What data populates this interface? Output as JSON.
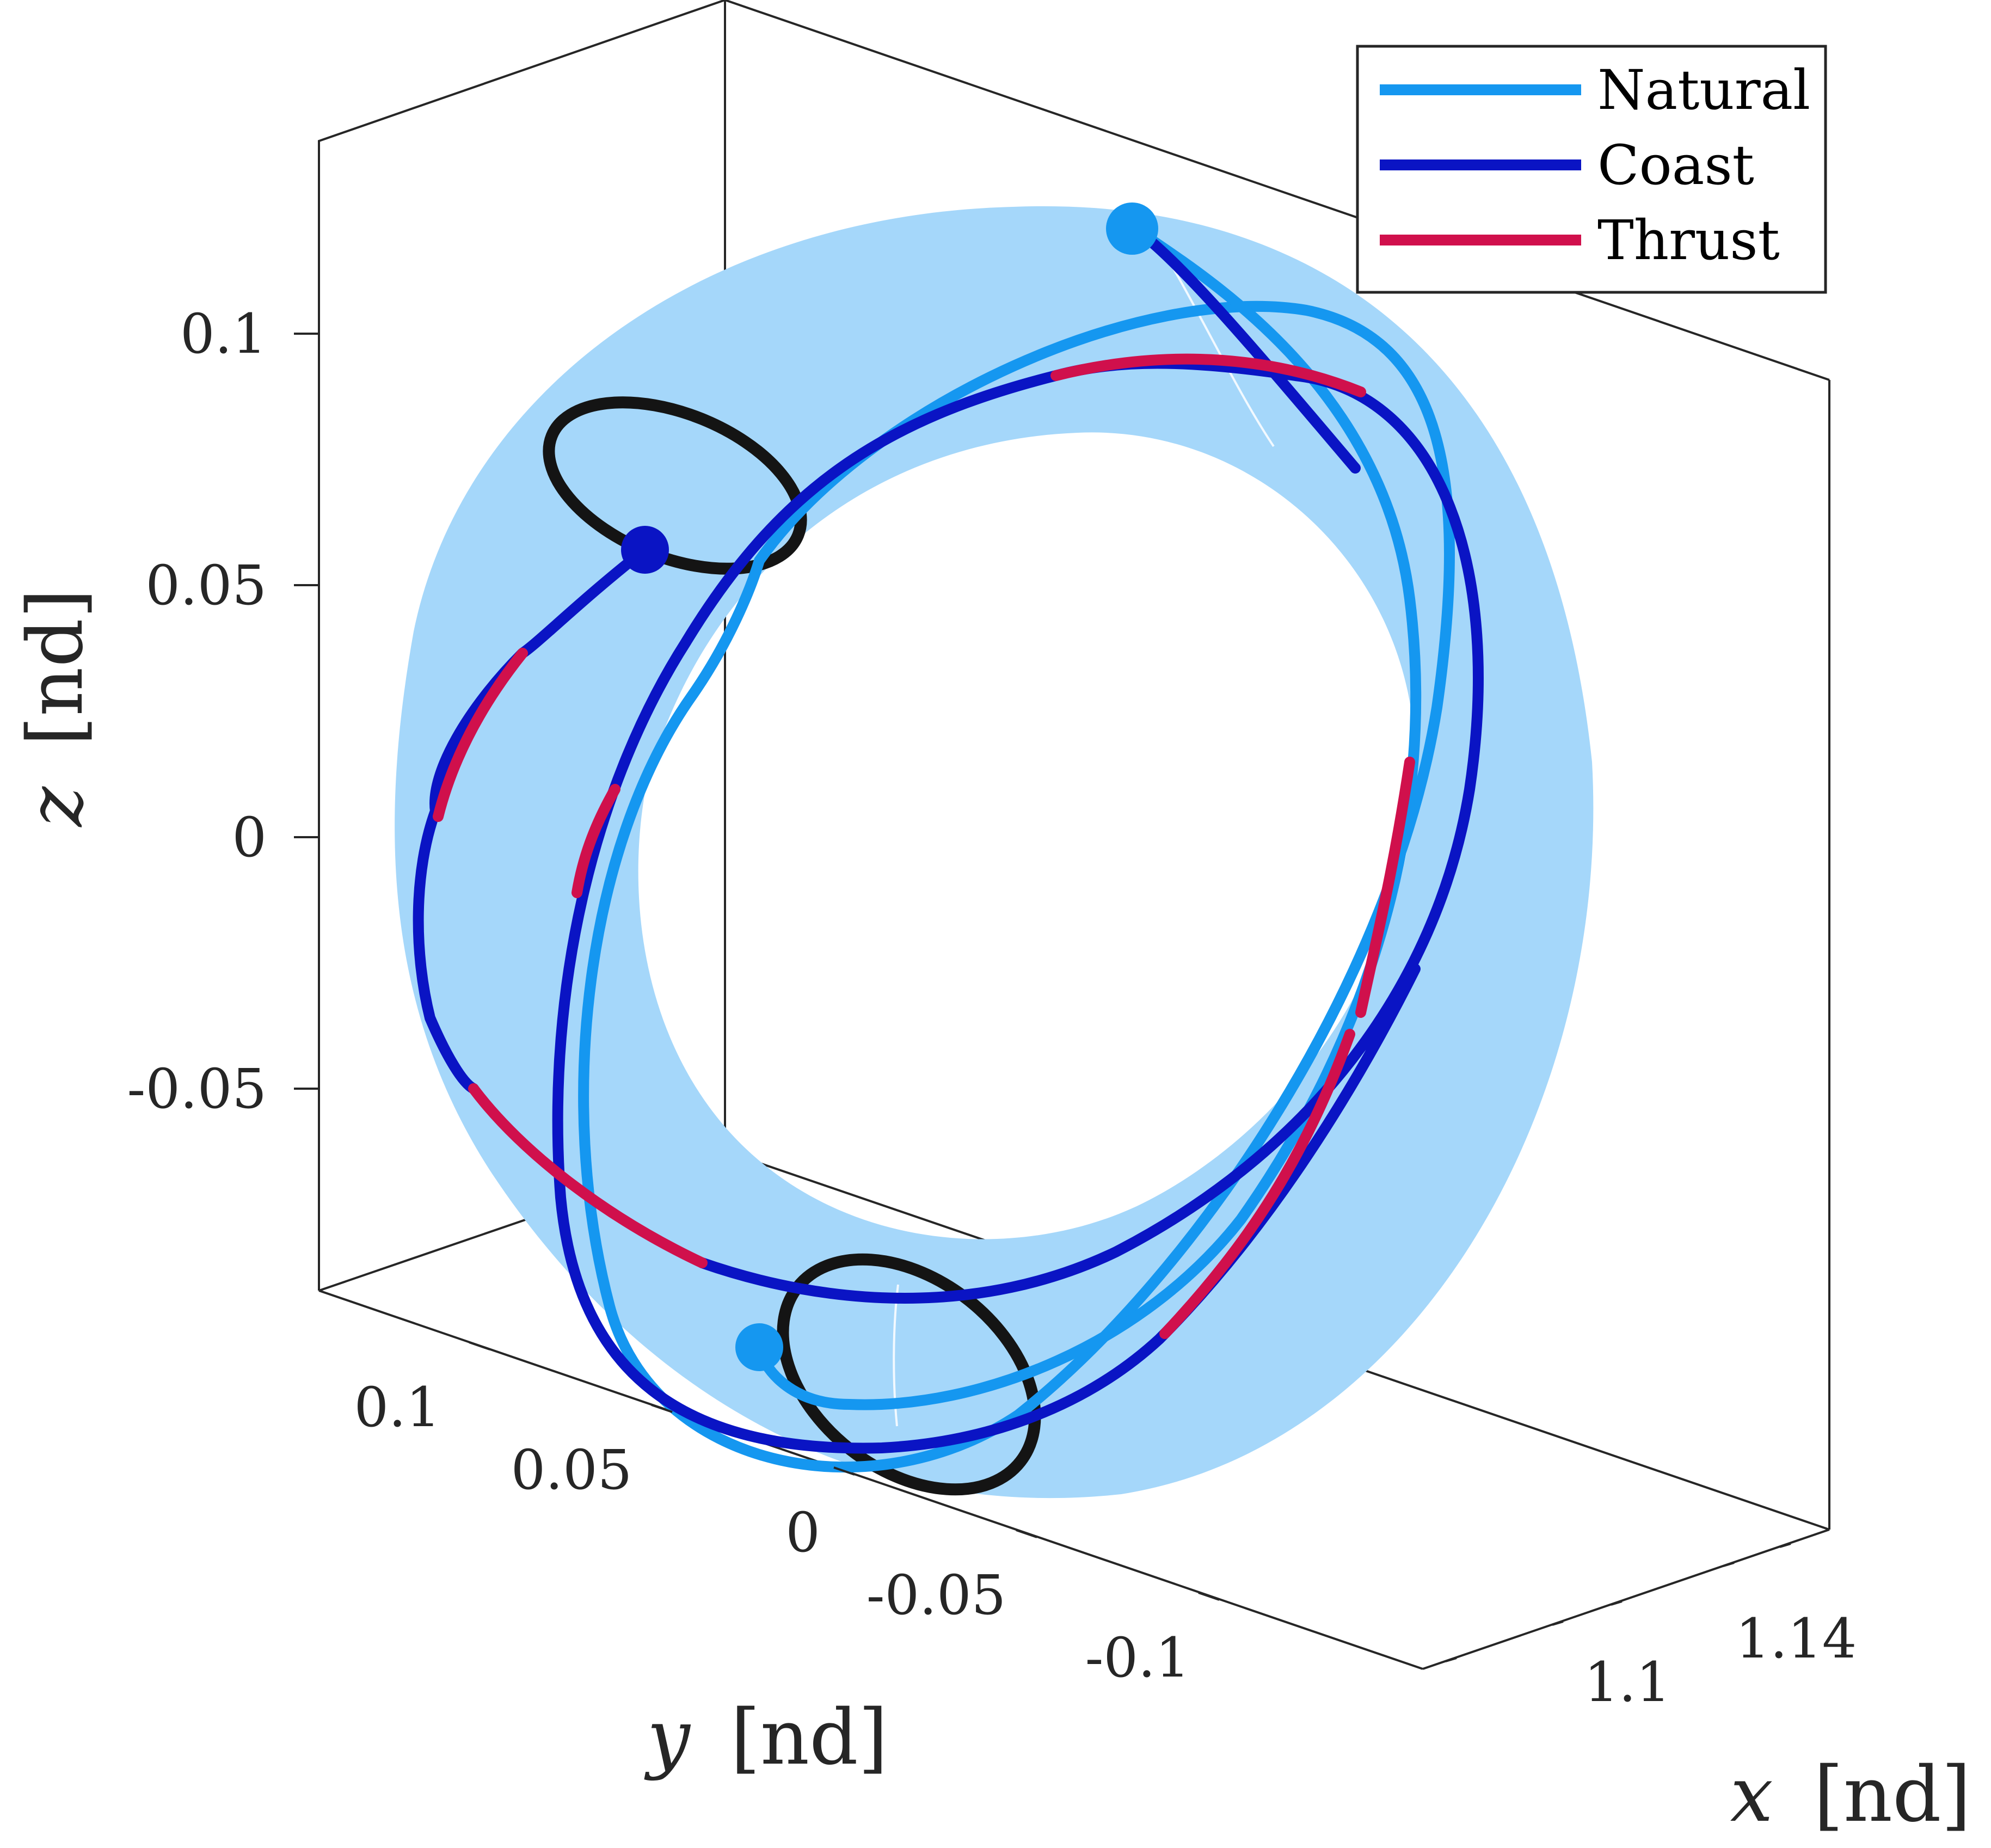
{
  "chart_data": {
    "type": "line",
    "projection": "3d",
    "title": "",
    "xlabel": {
      "var": "x",
      "unit": "[nd]"
    },
    "ylabel": {
      "var": "y",
      "unit": "[nd]"
    },
    "zlabel": {
      "var": "z",
      "unit": "[nd]"
    },
    "x_ticks": [
      "1.1",
      "1.14"
    ],
    "y_ticks": [
      "0.1",
      "0.05",
      "0",
      "-0.05",
      "-0.1"
    ],
    "z_ticks": [
      "0.1",
      "0.05",
      "0",
      "-0.05"
    ],
    "grid": false,
    "legend_position": "top-right",
    "legend": [
      {
        "name": "Natural",
        "color": "#1597F0"
      },
      {
        "name": "Coast",
        "color": "#0A14C4"
      },
      {
        "name": "Thrust",
        "color": "#D0104C"
      }
    ],
    "colors": {
      "torus_surface": "#A5D7FA",
      "periodic_orbits": "#141414",
      "box": "#262626"
    }
  }
}
